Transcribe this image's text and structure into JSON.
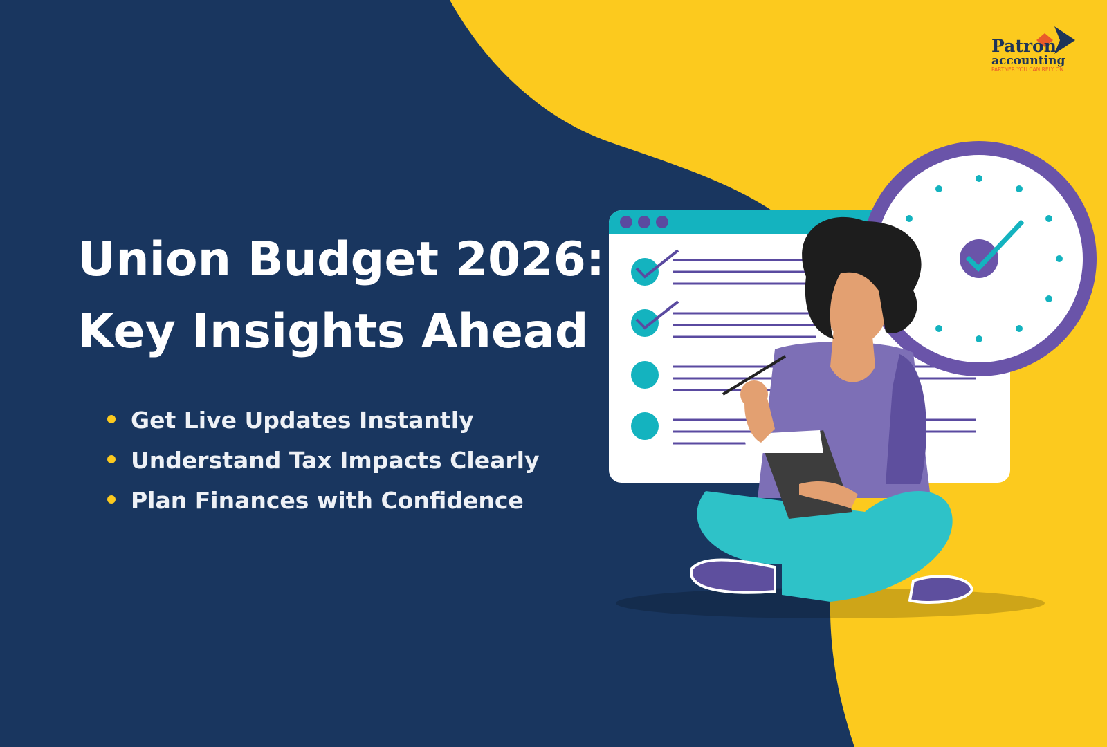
{
  "logo": {
    "name": "Patron",
    "name2": "accounting",
    "tagline": "PARTNER YOU CAN RELY ON"
  },
  "headline": {
    "lines": [
      "Union Budget 2026:",
      "Key Insights Ahead"
    ]
  },
  "bullets": [
    "Get Live Updates Instantly",
    "Understand Tax Impacts Clearly",
    "Plan Finances with Confidence"
  ]
}
